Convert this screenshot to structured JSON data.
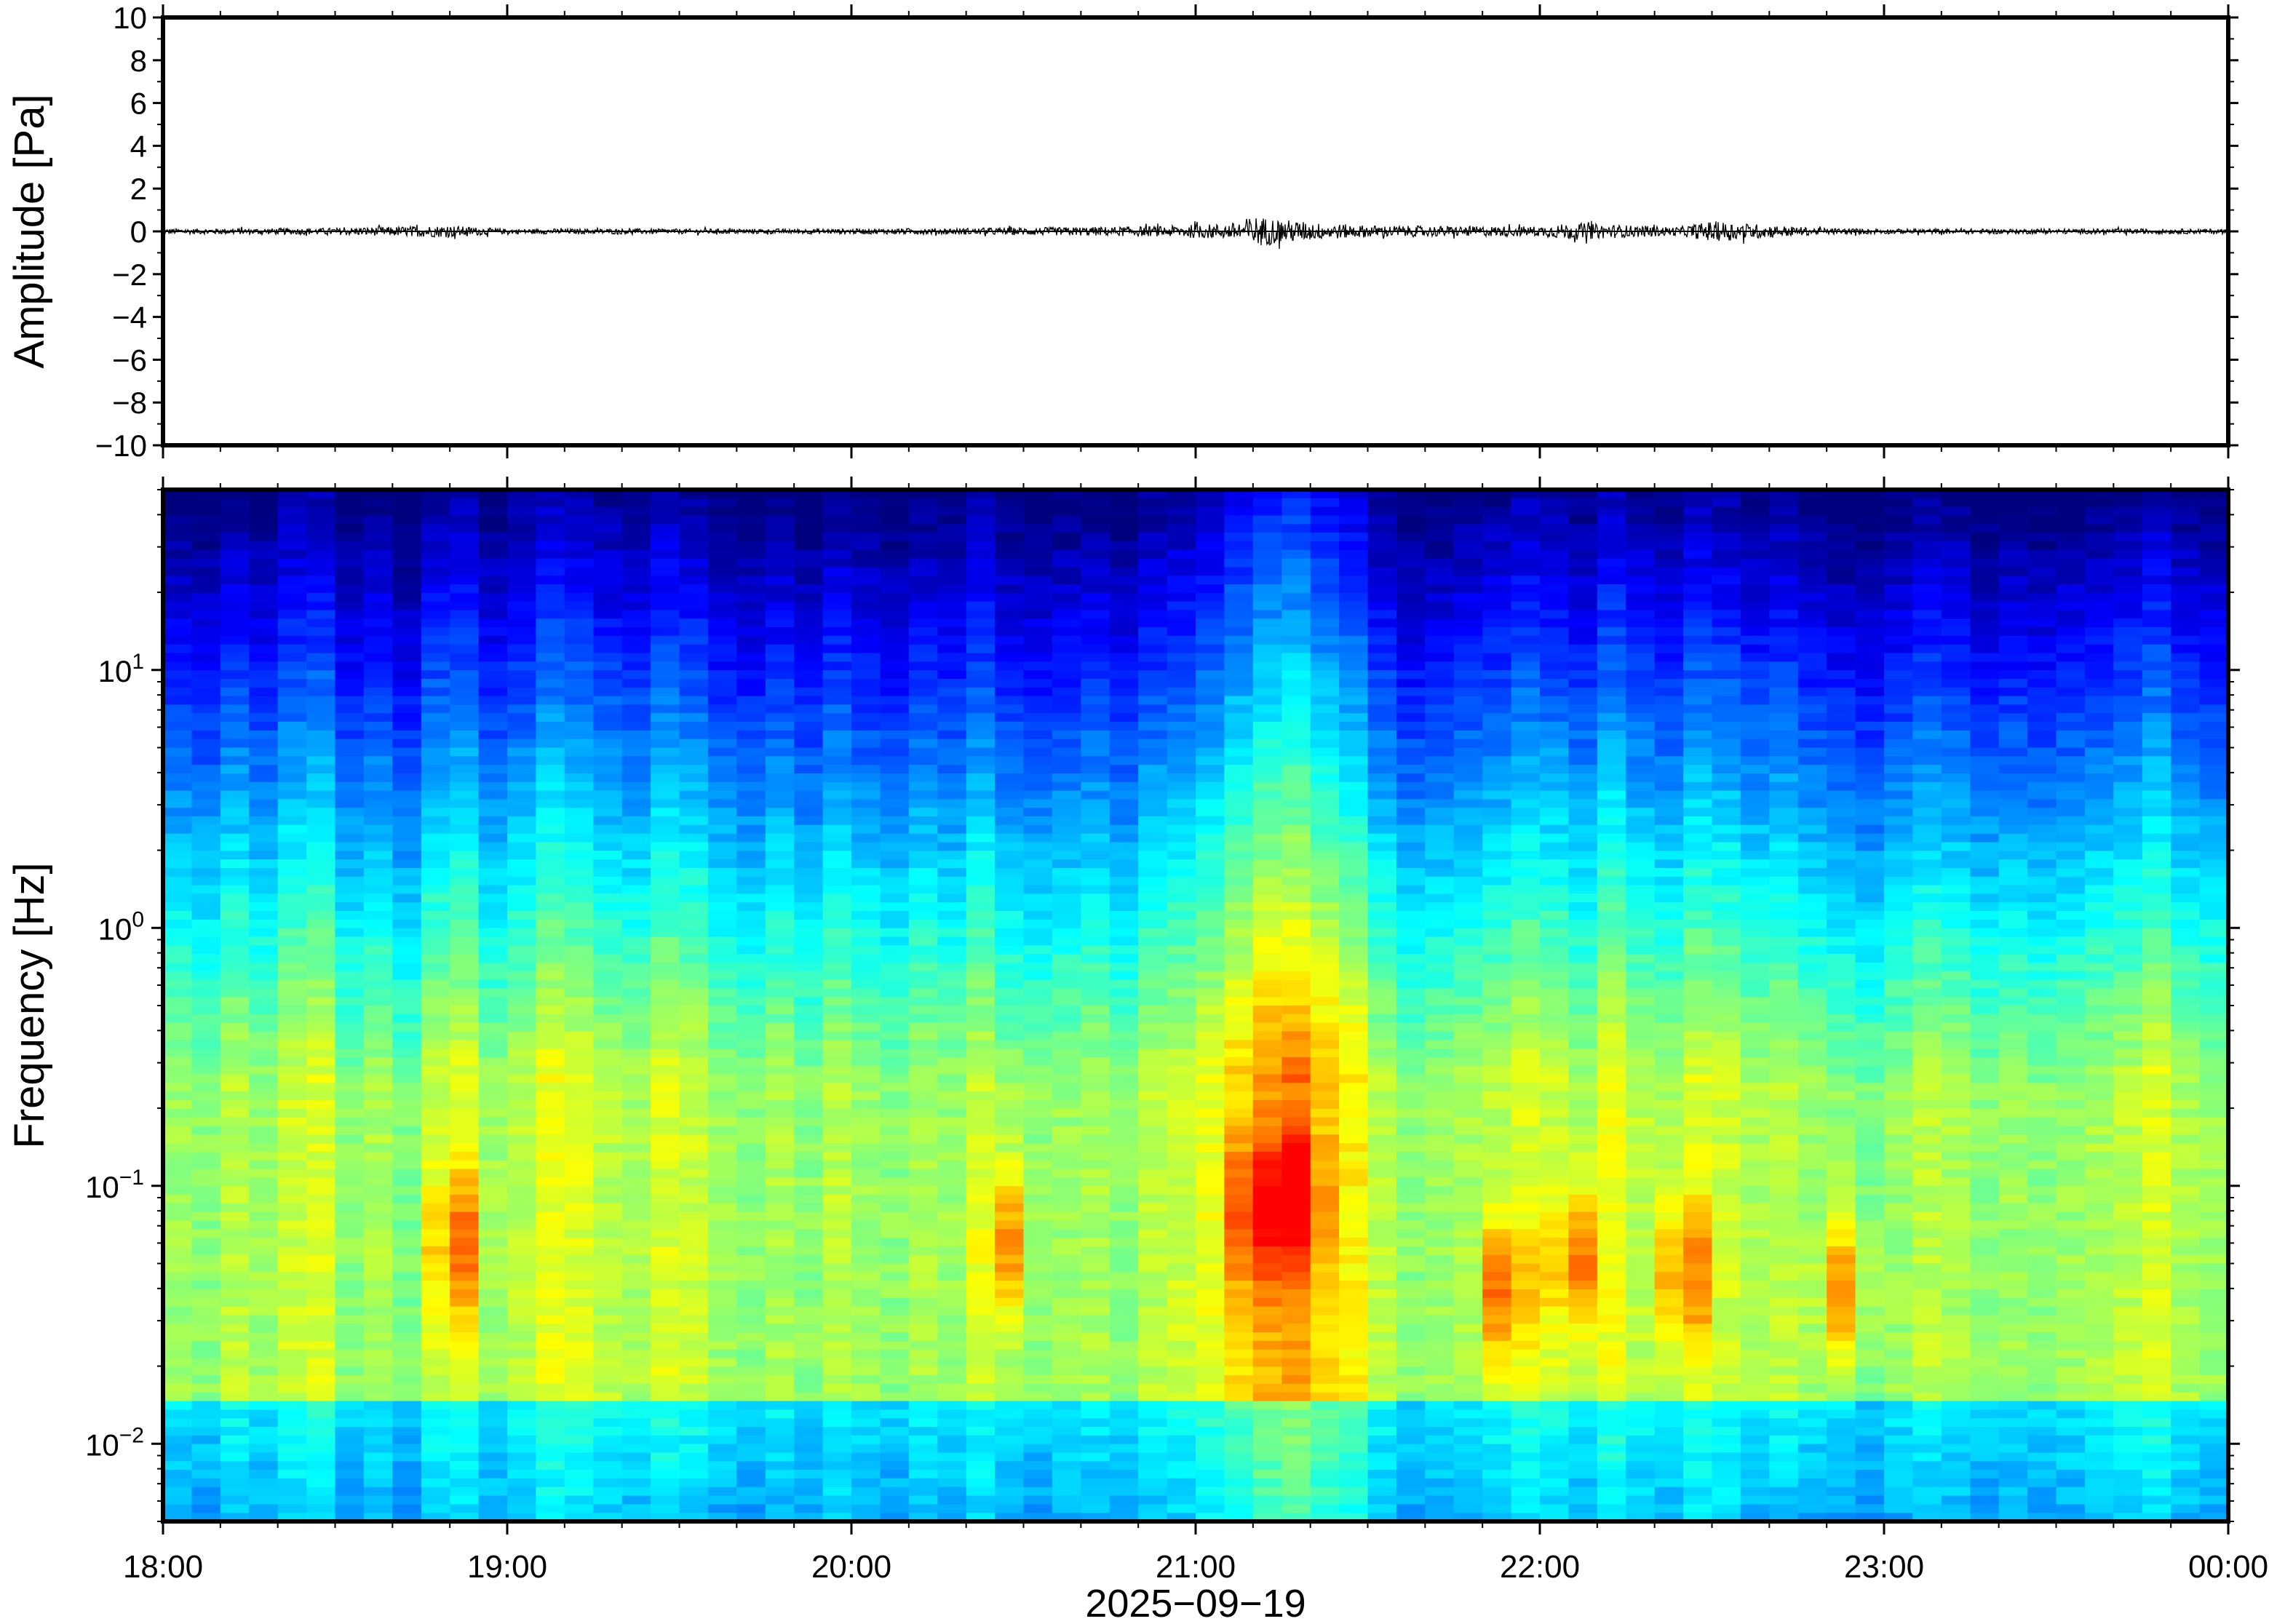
{
  "chart_data": [
    {
      "type": "line",
      "panel": "waveform",
      "ylabel": "Amplitude [Pa]",
      "ylim": [
        -10,
        10
      ],
      "yticks": [
        "10",
        "8",
        "6",
        "4",
        "2",
        "0",
        "−2",
        "−4",
        "−6",
        "−8",
        "−10"
      ],
      "ytick_values": [
        10,
        8,
        6,
        4,
        2,
        0,
        -2,
        -4,
        -6,
        -8,
        -10
      ],
      "xlim_hours": [
        18,
        24
      ],
      "series": [
        {
          "x_hours": [
            18.0,
            18.5,
            18.83,
            18.9,
            19.0,
            19.5,
            20.0,
            20.4,
            20.9,
            21.0,
            21.1,
            21.17,
            21.25,
            21.35,
            21.5,
            21.75,
            21.85,
            22.0,
            22.1,
            22.2,
            22.4,
            22.5,
            22.8,
            23.0,
            23.5,
            24.0
          ],
          "envelope_pa": [
            0.15,
            0.2,
            0.35,
            0.25,
            0.15,
            0.15,
            0.15,
            0.2,
            0.3,
            0.4,
            0.45,
            0.9,
            0.7,
            0.5,
            0.35,
            0.3,
            0.3,
            0.3,
            0.5,
            0.4,
            0.25,
            0.6,
            0.2,
            0.15,
            0.15,
            0.15
          ]
        }
      ]
    },
    {
      "type": "heatmap",
      "panel": "spectrogram",
      "ylabel": "Frequency [Hz]",
      "yscale": "log",
      "ylim_hz": [
        0.005,
        50
      ],
      "yticks": [
        {
          "base": "10",
          "exp": "−2",
          "value": 0.01
        },
        {
          "base": "10",
          "exp": "−1",
          "value": 0.1
        },
        {
          "base": "10",
          "exp": "0",
          "value": 1
        },
        {
          "base": "10",
          "exp": "1",
          "value": 10
        }
      ],
      "xlabel": "2025−09−19",
      "xticks": [
        "18:00",
        "19:00",
        "20:00",
        "21:00",
        "22:00",
        "23:00",
        "00:00"
      ],
      "xlim_hours": [
        18,
        24
      ],
      "colormap": [
        "#00007f",
        "#0000ff",
        "#007fff",
        "#00ffff",
        "#7fff7f",
        "#ffff00",
        "#ff7f00",
        "#ff0000"
      ],
      "columns": 72,
      "column_energy": [
        0.35,
        0.3,
        0.45,
        0.35,
        0.5,
        0.55,
        0.3,
        0.4,
        0.25,
        0.5,
        0.55,
        0.35,
        0.45,
        0.6,
        0.55,
        0.45,
        0.4,
        0.55,
        0.5,
        0.35,
        0.3,
        0.4,
        0.3,
        0.45,
        0.35,
        0.3,
        0.4,
        0.35,
        0.5,
        0.35,
        0.3,
        0.35,
        0.4,
        0.3,
        0.45,
        0.5,
        0.6,
        0.75,
        0.9,
        0.95,
        0.8,
        0.7,
        0.45,
        0.3,
        0.35,
        0.4,
        0.45,
        0.55,
        0.5,
        0.4,
        0.6,
        0.45,
        0.4,
        0.55,
        0.5,
        0.4,
        0.45,
        0.35,
        0.3,
        0.25,
        0.35,
        0.45,
        0.4,
        0.3,
        0.35,
        0.3,
        0.35,
        0.4,
        0.45,
        0.55,
        0.4,
        0.35
      ],
      "hotspots": [
        {
          "t_hours": 18.85,
          "f_hz": 0.06,
          "strength": 0.8
        },
        {
          "t_hours": 20.45,
          "f_hz": 0.06,
          "strength": 0.75
        },
        {
          "t_hours": 21.17,
          "f_hz": 0.08,
          "strength": 1.0
        },
        {
          "t_hours": 21.3,
          "f_hz": 0.09,
          "strength": 0.85
        },
        {
          "t_hours": 21.9,
          "f_hz": 0.04,
          "strength": 0.85
        },
        {
          "t_hours": 22.1,
          "f_hz": 0.05,
          "strength": 0.9
        },
        {
          "t_hours": 22.42,
          "f_hz": 0.045,
          "strength": 0.88
        },
        {
          "t_hours": 22.88,
          "f_hz": 0.04,
          "strength": 0.8
        }
      ]
    }
  ]
}
